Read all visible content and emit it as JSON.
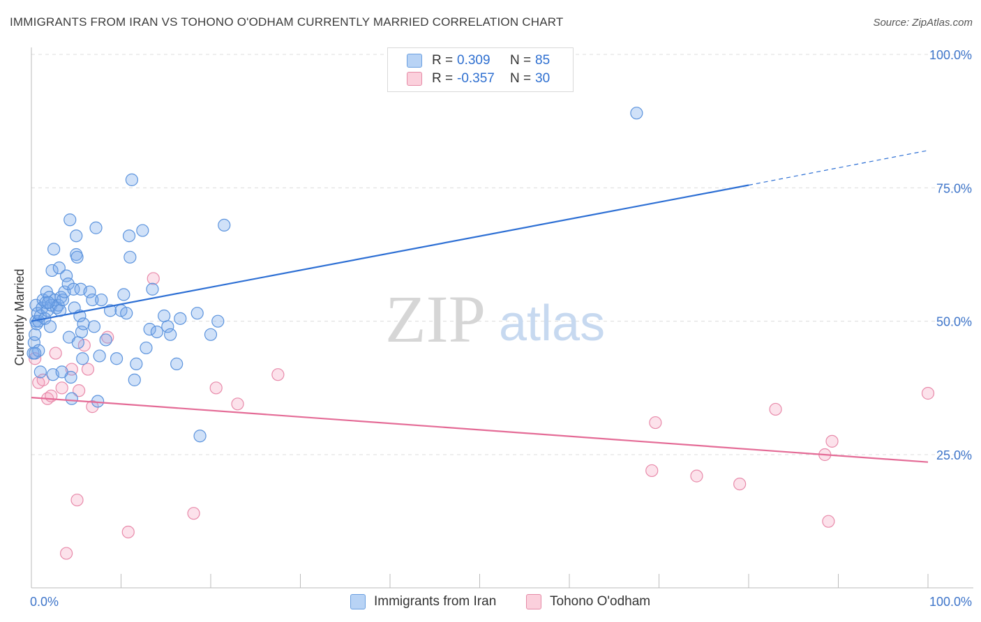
{
  "header": {
    "title": "IMMIGRANTS FROM IRAN VS TOHONO O'ODHAM CURRENTLY MARRIED CORRELATION CHART",
    "source": "Source: ZipAtlas.com"
  },
  "watermark": {
    "zip": "ZIP",
    "atlas": "atlas"
  },
  "legend": {
    "rows": [
      {
        "r_label": "R =",
        "r_value": "0.309",
        "n_label": "N =",
        "n_value": "85",
        "color": "#a9c9f2",
        "border": "#6a9fe0"
      },
      {
        "r_label": "R =",
        "r_value": "-0.357",
        "n_label": "N =",
        "n_value": "30",
        "color": "#f7c0d0",
        "border": "#e58aa6"
      }
    ]
  },
  "colors": {
    "blue_fill": "rgba(120,170,235,0.35)",
    "blue_stroke": "#5b93dd",
    "blue_line": "#2d6fd4",
    "pink_fill": "rgba(245,160,190,0.30)",
    "pink_stroke": "#e88aaa",
    "pink_line": "#e46b96",
    "tick": "#3d74c9"
  },
  "chart_data": {
    "type": "scatter",
    "title": "IMMIGRANTS FROM IRAN VS TOHONO O'ODHAM CURRENTLY MARRIED CORRELATION CHART",
    "xlabel": "",
    "ylabel": "Currently Married",
    "xlim": [
      0,
      100
    ],
    "ylim": [
      0,
      104
    ],
    "x_tick_labels": [
      "0.0%",
      "100.0%"
    ],
    "y_ticks": [
      25,
      50,
      75,
      100
    ],
    "y_tick_labels": [
      "25.0%",
      "50.0%",
      "75.0%",
      "100.0%"
    ],
    "grid": "horizontal dashed",
    "legend_position": "top-center",
    "series": [
      {
        "name": "Immigrants from Iran",
        "color": "#6a9fe0",
        "trend": {
          "x": [
            0,
            80
          ],
          "y": [
            50.0,
            75.5
          ],
          "dashed_to": [
            100,
            82.0
          ]
        },
        "points": [
          [
            0.2,
            44.0
          ],
          [
            0.3,
            46.0
          ],
          [
            0.4,
            47.5
          ],
          [
            0.5,
            53.0
          ],
          [
            0.5,
            50.0
          ],
          [
            0.6,
            49.5
          ],
          [
            0.7,
            51.5
          ],
          [
            0.8,
            50.0
          ],
          [
            1.0,
            51.0
          ],
          [
            1.2,
            52.5
          ],
          [
            1.3,
            54.0
          ],
          [
            1.5,
            50.5
          ],
          [
            1.6,
            53.5
          ],
          [
            1.7,
            55.5
          ],
          [
            1.8,
            52.0
          ],
          [
            2.0,
            54.5
          ],
          [
            2.1,
            49.0
          ],
          [
            2.2,
            53.0
          ],
          [
            2.3,
            59.5
          ],
          [
            2.5,
            63.5
          ],
          [
            2.6,
            54.0
          ],
          [
            2.8,
            52.5
          ],
          [
            3.0,
            53.0
          ],
          [
            3.1,
            60.0
          ],
          [
            3.2,
            52.0
          ],
          [
            3.3,
            54.5
          ],
          [
            3.5,
            54.0
          ],
          [
            3.7,
            55.5
          ],
          [
            3.9,
            58.5
          ],
          [
            4.1,
            57.0
          ],
          [
            4.2,
            47.0
          ],
          [
            4.3,
            69.0
          ],
          [
            4.4,
            39.5
          ],
          [
            4.5,
            35.5
          ],
          [
            4.7,
            56.0
          ],
          [
            4.8,
            52.5
          ],
          [
            5.0,
            66.0
          ],
          [
            5.0,
            62.5
          ],
          [
            5.1,
            62.0
          ],
          [
            5.2,
            46.0
          ],
          [
            5.4,
            51.0
          ],
          [
            5.5,
            56.0
          ],
          [
            5.6,
            48.0
          ],
          [
            5.7,
            43.0
          ],
          [
            5.8,
            49.5
          ],
          [
            6.5,
            55.5
          ],
          [
            6.8,
            54.0
          ],
          [
            7.0,
            49.0
          ],
          [
            7.2,
            67.5
          ],
          [
            7.4,
            35.0
          ],
          [
            7.6,
            43.5
          ],
          [
            7.8,
            54.0
          ],
          [
            8.3,
            46.5
          ],
          [
            8.8,
            52.0
          ],
          [
            9.5,
            43.0
          ],
          [
            10.0,
            52.0
          ],
          [
            10.3,
            55.0
          ],
          [
            10.6,
            51.5
          ],
          [
            10.9,
            66.0
          ],
          [
            11.0,
            62.0
          ],
          [
            11.2,
            76.5
          ],
          [
            11.5,
            39.0
          ],
          [
            11.7,
            42.0
          ],
          [
            12.4,
            67.0
          ],
          [
            12.8,
            45.0
          ],
          [
            13.2,
            48.5
          ],
          [
            13.5,
            56.0
          ],
          [
            14.0,
            48.0
          ],
          [
            14.8,
            51.0
          ],
          [
            15.2,
            49.0
          ],
          [
            15.5,
            47.5
          ],
          [
            16.2,
            42.0
          ],
          [
            16.6,
            50.5
          ],
          [
            18.5,
            51.5
          ],
          [
            18.8,
            28.5
          ],
          [
            20.0,
            47.5
          ],
          [
            20.8,
            50.0
          ],
          [
            21.5,
            68.0
          ],
          [
            67.5,
            89.0
          ],
          [
            1.0,
            40.5
          ],
          [
            0.8,
            44.5
          ],
          [
            2.4,
            40.0
          ],
          [
            3.4,
            40.5
          ],
          [
            1.9,
            53.5
          ],
          [
            0.4,
            44.0
          ]
        ]
      },
      {
        "name": "Tohono O'odham",
        "color": "#e58aa6",
        "trend": {
          "x": [
            0,
            100
          ],
          "y": [
            35.7,
            23.6
          ]
        },
        "points": [
          [
            0.4,
            43.0
          ],
          [
            0.8,
            38.5
          ],
          [
            1.3,
            39.0
          ],
          [
            1.8,
            35.5
          ],
          [
            2.2,
            36.0
          ],
          [
            2.7,
            44.0
          ],
          [
            3.4,
            37.5
          ],
          [
            3.9,
            6.5
          ],
          [
            4.5,
            41.0
          ],
          [
            5.1,
            16.5
          ],
          [
            5.3,
            37.0
          ],
          [
            5.9,
            45.5
          ],
          [
            6.3,
            41.0
          ],
          [
            6.8,
            34.0
          ],
          [
            8.5,
            47.0
          ],
          [
            10.8,
            10.5
          ],
          [
            13.6,
            58.0
          ],
          [
            18.1,
            14.0
          ],
          [
            20.6,
            37.5
          ],
          [
            23.0,
            34.5
          ],
          [
            27.5,
            40.0
          ],
          [
            69.2,
            22.0
          ],
          [
            69.6,
            31.0
          ],
          [
            74.2,
            21.0
          ],
          [
            79.0,
            19.5
          ],
          [
            83.0,
            33.5
          ],
          [
            88.5,
            25.0
          ],
          [
            88.9,
            12.5
          ],
          [
            89.3,
            27.5
          ],
          [
            100.0,
            36.5
          ]
        ]
      }
    ]
  }
}
